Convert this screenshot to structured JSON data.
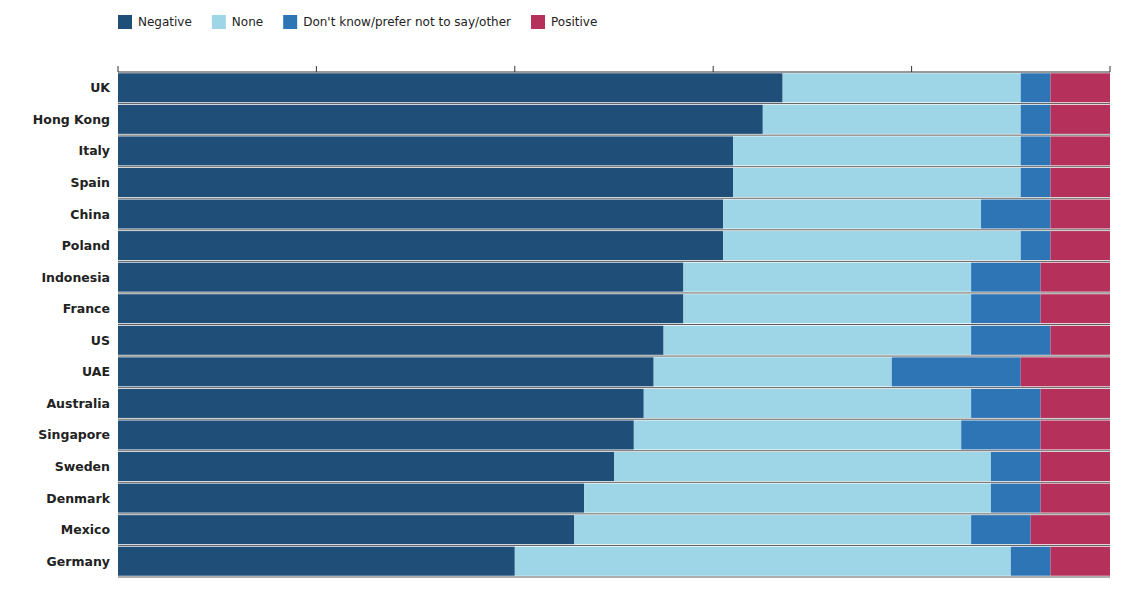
{
  "chart_data": {
    "type": "bar",
    "orientation": "horizontal",
    "stacked": true,
    "categories": [
      "UK",
      "Hong Kong",
      "Italy",
      "Spain",
      "China",
      "Poland",
      "Indonesia",
      "France",
      "US",
      "UAE",
      "Australia",
      "Singapore",
      "Sweden",
      "Denmark",
      "Mexico",
      "Germany"
    ],
    "series": [
      {
        "name": "Negative",
        "color": "#1f4e79",
        "values": [
          67,
          65,
          62,
          62,
          61,
          61,
          57,
          57,
          55,
          54,
          53,
          52,
          50,
          47,
          46,
          40
        ]
      },
      {
        "name": "None",
        "color": "#9ed6e8",
        "values": [
          24,
          26,
          29,
          29,
          26,
          30,
          29,
          29,
          31,
          24,
          33,
          33,
          38,
          41,
          40,
          50
        ]
      },
      {
        "name": "Don't know/prefer not to say/other",
        "color": "#2e75b6",
        "values": [
          3,
          3,
          3,
          3,
          7,
          3,
          7,
          7,
          8,
          13,
          7,
          8,
          5,
          5,
          6,
          4
        ]
      },
      {
        "name": "Positive",
        "color": "#b5305a",
        "values": [
          6,
          6,
          6,
          6,
          6,
          6,
          7,
          7,
          6,
          9,
          7,
          7,
          7,
          7,
          8,
          6
        ]
      }
    ],
    "xlim": [
      0,
      100
    ],
    "xticks": [
      0,
      20,
      40,
      60,
      80,
      100
    ],
    "tick_labels": "y",
    "legend": "top-left",
    "grid": false
  }
}
